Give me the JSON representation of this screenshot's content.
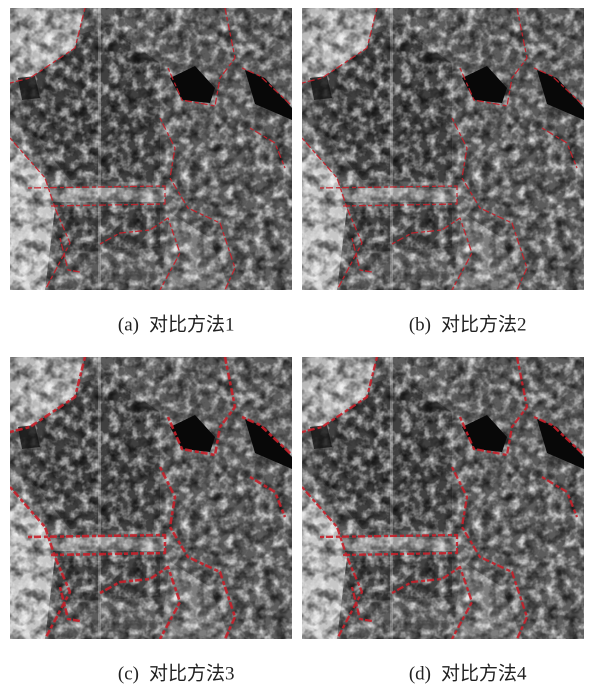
{
  "figure": {
    "panels": [
      {
        "label": "(a)",
        "caption": "对比方法1"
      },
      {
        "label": "(b)",
        "caption": "对比方法2"
      },
      {
        "label": "(c)",
        "caption": "对比方法3"
      },
      {
        "label": "(d)",
        "caption": "对比方法4"
      }
    ]
  }
}
